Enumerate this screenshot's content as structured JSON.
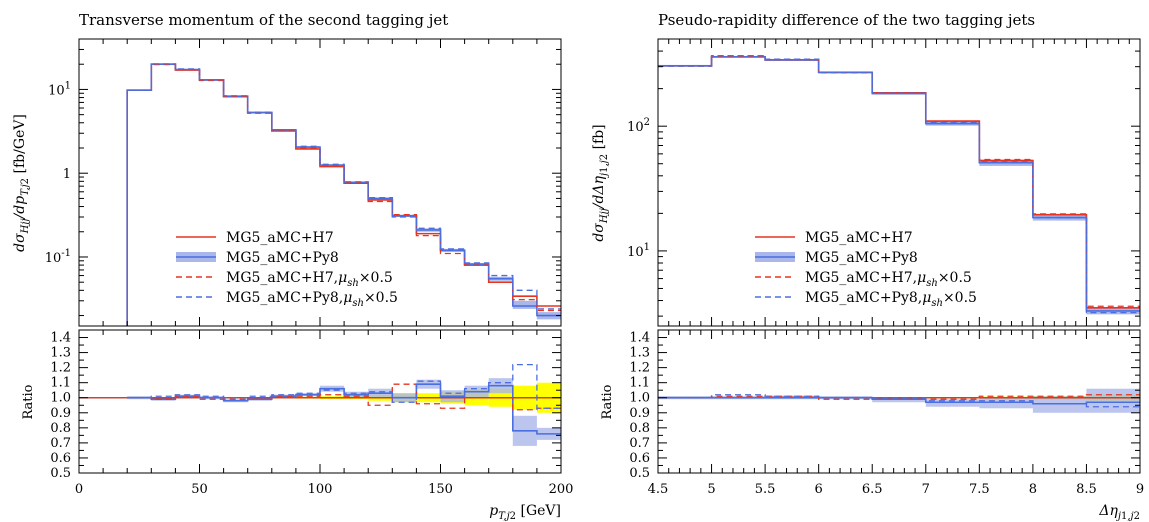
{
  "colors": {
    "h7": "#e8331f",
    "py8": "#4b6fe0",
    "py8_band": "#aab7ea",
    "yellow": "#ffff00",
    "ref": "#000000"
  },
  "legend": {
    "items": [
      {
        "label": "MG5_aMC+H7",
        "style": "solid",
        "color": "#e8331f"
      },
      {
        "label": "MG5_aMC+Py8",
        "style": "solid-band",
        "color": "#4b6fe0"
      },
      {
        "label": "MG5_aMC+H7,μ_sh×0.5",
        "style": "dashed",
        "color": "#e8331f"
      },
      {
        "label": "MG5_aMC+Py8,μ_sh×0.5",
        "style": "dashed",
        "color": "#4b6fe0"
      }
    ]
  },
  "chart_data": [
    {
      "type": "line",
      "title": "Transverse momentum of the second tagging jet",
      "ylabel": "dσ_Hjj/dp_T,j2 [fb/GeV]",
      "xlabel": "p_T,j2 [GeV]",
      "yscale": "log",
      "xlim": [
        0,
        200
      ],
      "ylim": [
        0.015,
        40
      ],
      "x_ticks": [
        "0",
        "50",
        "100",
        "150",
        "200"
      ],
      "y_ticks": [
        {
          "v": 10,
          "label": "10^1"
        },
        {
          "v": 1,
          "label": "1"
        },
        {
          "v": 0.1,
          "label": "10^-1"
        }
      ],
      "ratio": {
        "ylabel": "Ratio",
        "ylim": [
          0.5,
          1.45
        ],
        "ticks": [
          "0.5",
          "0.6",
          "0.7",
          "0.8",
          "0.9",
          "1.0",
          "1.1",
          "1.2",
          "1.3",
          "1.4"
        ]
      },
      "edges": [
        20,
        30,
        40,
        50,
        60,
        70,
        80,
        90,
        100,
        110,
        120,
        130,
        140,
        150,
        160,
        170,
        180,
        190,
        200
      ],
      "series": [
        {
          "name": "MG5_aMC+H7",
          "values": [
            9.8,
            20.0,
            17.0,
            13.0,
            8.3,
            5.3,
            3.2,
            1.95,
            1.2,
            0.76,
            0.48,
            0.31,
            0.19,
            0.12,
            0.08,
            0.05,
            0.034,
            0.026
          ]
        },
        {
          "name": "MG5_aMC+Py8",
          "values": [
            9.8,
            20.0,
            17.3,
            13.0,
            8.2,
            5.3,
            3.3,
            2.05,
            1.25,
            0.78,
            0.5,
            0.31,
            0.21,
            0.12,
            0.082,
            0.055,
            0.026,
            0.02
          ]
        },
        {
          "name": "MG5_aMC+H7,μ_sh×0.5",
          "values": [
            9.8,
            19.8,
            17.2,
            12.8,
            8.2,
            5.2,
            3.25,
            2.0,
            1.22,
            0.77,
            0.46,
            0.32,
            0.18,
            0.11,
            0.08,
            0.05,
            0.031,
            0.023
          ]
        },
        {
          "name": "MG5_aMC+Py8,μ_sh×0.5",
          "values": [
            9.8,
            20.2,
            17.6,
            13.1,
            8.4,
            5.35,
            3.3,
            2.1,
            1.28,
            0.79,
            0.51,
            0.3,
            0.22,
            0.125,
            0.085,
            0.06,
            0.04,
            0.024
          ]
        }
      ],
      "py8_band": {
        "lo": [
          9.7,
          19.7,
          17.0,
          12.8,
          8.1,
          5.2,
          3.25,
          2.0,
          1.23,
          0.77,
          0.49,
          0.3,
          0.2,
          0.115,
          0.079,
          0.052,
          0.024,
          0.018
        ],
        "hi": [
          9.9,
          20.3,
          17.6,
          13.2,
          8.3,
          5.4,
          3.35,
          2.1,
          1.27,
          0.79,
          0.51,
          0.32,
          0.22,
          0.125,
          0.085,
          0.058,
          0.03,
          0.022
        ]
      },
      "ratio_series": [
        {
          "name": "MG5_aMC+Py8",
          "values": [
            1.0,
            0.99,
            1.01,
            1.0,
            0.98,
            0.99,
            1.01,
            1.02,
            1.06,
            1.02,
            1.03,
            1.0,
            1.09,
            1.01,
            1.04,
            1.08,
            0.78,
            0.76
          ]
        },
        {
          "name": "MG5_aMC+H7,μ_sh×0.5",
          "values": [
            1.0,
            0.99,
            1.01,
            0.99,
            0.99,
            1.0,
            1.01,
            1.01,
            1.02,
            1.01,
            0.95,
            1.09,
            0.96,
            0.93,
            1.0,
            1.0,
            0.92,
            0.93
          ]
        },
        {
          "name": "MG5_aMC+Py8,μ_sh×0.5",
          "values": [
            1.0,
            1.01,
            1.02,
            1.01,
            1.0,
            1.01,
            1.02,
            1.03,
            1.05,
            1.03,
            1.04,
            0.97,
            1.11,
            1.03,
            1.06,
            1.1,
            1.22,
            0.93
          ]
        }
      ],
      "ratio_band_py8": {
        "lo": [
          0.99,
          0.98,
          1.0,
          0.99,
          0.97,
          0.98,
          1.0,
          1.01,
          1.04,
          1.0,
          1.0,
          0.97,
          1.06,
          0.97,
          1.0,
          1.03,
          0.68,
          0.72
        ],
        "hi": [
          1.01,
          1.0,
          1.02,
          1.01,
          0.99,
          1.0,
          1.02,
          1.03,
          1.08,
          1.04,
          1.06,
          1.03,
          1.12,
          1.05,
          1.08,
          1.13,
          0.88,
          0.8
        ]
      },
      "ratio_band_h7": {
        "lo": [
          0.998,
          0.997,
          0.997,
          0.997,
          0.996,
          0.996,
          0.995,
          0.994,
          0.99,
          0.99,
          0.98,
          0.97,
          0.97,
          0.96,
          0.95,
          0.94,
          0.92,
          0.9
        ],
        "hi": [
          1.002,
          1.003,
          1.003,
          1.003,
          1.004,
          1.004,
          1.005,
          1.006,
          1.01,
          1.01,
          1.02,
          1.03,
          1.03,
          1.04,
          1.05,
          1.06,
          1.08,
          1.1
        ]
      }
    },
    {
      "type": "line",
      "title": "Pseudo-rapidity difference of the two tagging jets",
      "ylabel": "dσ_Hjj/dΔη_j1,j2 [fb]",
      "xlabel": "Δη_j1,j2",
      "yscale": "log",
      "xlim": [
        4.5,
        9
      ],
      "ylim": [
        2.5,
        500
      ],
      "x_ticks": [
        "4.5",
        "5",
        "5.5",
        "6",
        "6.5",
        "7",
        "7.5",
        "8",
        "8.5",
        "9"
      ],
      "y_ticks": [
        {
          "v": 100,
          "label": "10^2"
        },
        {
          "v": 10,
          "label": "10^1"
        }
      ],
      "ratio": {
        "ylabel": "Ratio",
        "ylim": [
          0.5,
          1.45
        ],
        "ticks": [
          "0.5",
          "0.6",
          "0.7",
          "0.8",
          "0.9",
          "1.0",
          "1.1",
          "1.2",
          "1.3",
          "1.4"
        ]
      },
      "edges": [
        4.5,
        5.0,
        5.5,
        6.0,
        6.5,
        7.0,
        7.5,
        8.0,
        8.5,
        9.0
      ],
      "series": [
        {
          "name": "MG5_aMC+H7",
          "values": [
            305,
            360,
            340,
            270,
            185,
            110,
            53,
            19.5,
            3.5
          ]
        },
        {
          "name": "MG5_aMC+Py8",
          "values": [
            305,
            360,
            340,
            270,
            183,
            105,
            51,
            18.5,
            3.3
          ]
        },
        {
          "name": "MG5_aMC+H7,μ_sh×0.5",
          "values": [
            303,
            365,
            343,
            268,
            185,
            109,
            54,
            19.8,
            3.6
          ]
        },
        {
          "name": "MG5_aMC+Py8,μ_sh×0.5",
          "values": [
            303,
            368,
            345,
            270,
            184,
            107,
            52,
            18.5,
            3.2
          ]
        }
      ],
      "py8_band": {
        "lo": [
          300,
          354,
          334,
          265,
          179,
          101,
          48,
          17.5,
          3.1
        ],
        "hi": [
          310,
          366,
          346,
          275,
          187,
          109,
          54,
          19.5,
          3.5
        ]
      },
      "ratio_series": [
        {
          "name": "MG5_aMC+Py8",
          "values": [
            1.0,
            1.0,
            1.0,
            1.0,
            0.99,
            0.97,
            0.97,
            0.96,
            0.97
          ]
        },
        {
          "name": "MG5_aMC+H7,μ_sh×0.5",
          "values": [
            1.0,
            1.01,
            1.01,
            0.99,
            1.0,
            0.99,
            1.01,
            1.01,
            1.02
          ]
        },
        {
          "name": "MG5_aMC+Py8,μ_sh×0.5",
          "values": [
            1.0,
            1.02,
            1.01,
            1.0,
            1.0,
            0.98,
            0.98,
            0.96,
            0.94
          ]
        }
      ],
      "ratio_band_py8": {
        "lo": [
          0.99,
          0.99,
          0.99,
          0.99,
          0.97,
          0.94,
          0.93,
          0.9,
          0.9
        ],
        "hi": [
          1.01,
          1.01,
          1.01,
          1.01,
          1.0,
          0.99,
          1.0,
          1.01,
          1.06
        ]
      },
      "ratio_band_h7": {
        "lo": [
          0.998,
          0.998,
          0.998,
          0.997,
          0.996,
          0.995,
          0.993,
          0.99,
          0.98
        ],
        "hi": [
          1.002,
          1.002,
          1.002,
          1.003,
          1.004,
          1.005,
          1.007,
          1.01,
          1.02
        ]
      }
    }
  ]
}
